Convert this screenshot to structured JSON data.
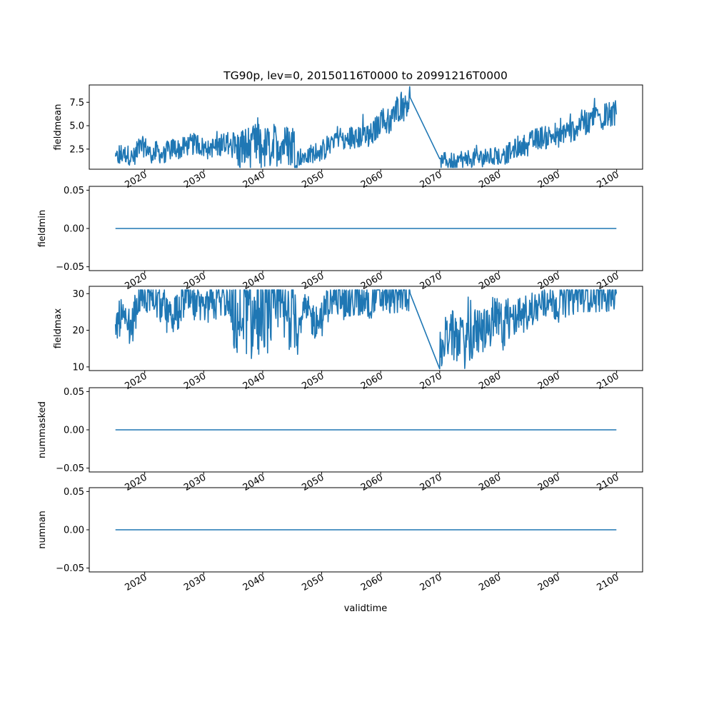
{
  "chart_data": {
    "type": "line",
    "title": "TG90p, lev=0, 20150116T0000 to 20991216T0000",
    "xlabel": "validtime",
    "color": "#1f77b4",
    "x_ticks": [
      2020,
      2030,
      2040,
      2050,
      2060,
      2070,
      2080,
      2090,
      2100
    ],
    "xlim": [
      2010.6,
      2104.4
    ],
    "panels": [
      {
        "ylabel": "fieldmean",
        "ylim": [
          0.35,
          9.35
        ],
        "y_ticks": [
          2.5,
          5.0,
          7.5
        ],
        "y_tick_labels": [
          "2.5",
          "5.0",
          "7.5"
        ],
        "series": [
          {
            "x": 2015.04,
            "y": 1.4
          },
          {
            "x": 2016.0,
            "y": 1.9
          },
          {
            "x": 2017.0,
            "y": 2.0
          },
          {
            "x": 2018.0,
            "y": 1.5
          },
          {
            "x": 2019.0,
            "y": 2.6
          },
          {
            "x": 2020.0,
            "y": 2.8
          },
          {
            "x": 2021.0,
            "y": 2.0
          },
          {
            "x": 2022.0,
            "y": 2.3
          },
          {
            "x": 2023.0,
            "y": 1.8
          },
          {
            "x": 2024.0,
            "y": 2.4
          },
          {
            "x": 2025.0,
            "y": 2.7
          },
          {
            "x": 2026.0,
            "y": 2.4
          },
          {
            "x": 2027.0,
            "y": 2.9
          },
          {
            "x": 2028.0,
            "y": 3.0
          },
          {
            "x": 2029.0,
            "y": 3.1
          },
          {
            "x": 2030.0,
            "y": 2.6
          },
          {
            "x": 2031.0,
            "y": 2.8
          },
          {
            "x": 2032.0,
            "y": 2.6
          },
          {
            "x": 2033.0,
            "y": 3.0
          },
          {
            "x": 2034.0,
            "y": 3.3
          },
          {
            "x": 2035.0,
            "y": 2.4
          },
          {
            "x": 2036.0,
            "y": 2.3
          },
          {
            "x": 2037.0,
            "y": 2.7
          },
          {
            "x": 2038.0,
            "y": 2.6
          },
          {
            "x": 2039.0,
            "y": 3.0
          },
          {
            "x": 2040.0,
            "y": 2.5
          },
          {
            "x": 2041.0,
            "y": 2.7
          },
          {
            "x": 2042.0,
            "y": 2.9
          },
          {
            "x": 2043.0,
            "y": 3.3
          },
          {
            "x": 2044.0,
            "y": 2.8
          },
          {
            "x": 2045.0,
            "y": 3.2
          },
          {
            "x": 2046.0,
            "y": 1.6
          },
          {
            "x": 2047.0,
            "y": 1.8
          },
          {
            "x": 2048.0,
            "y": 1.7
          },
          {
            "x": 2049.0,
            "y": 2.4
          },
          {
            "x": 2050.0,
            "y": 2.0
          },
          {
            "x": 2051.0,
            "y": 2.8
          },
          {
            "x": 2052.0,
            "y": 3.6
          },
          {
            "x": 2053.0,
            "y": 4.0
          },
          {
            "x": 2054.0,
            "y": 3.3
          },
          {
            "x": 2055.0,
            "y": 3.8
          },
          {
            "x": 2056.0,
            "y": 3.5
          },
          {
            "x": 2057.0,
            "y": 4.2
          },
          {
            "x": 2058.0,
            "y": 3.8
          },
          {
            "x": 2059.0,
            "y": 4.5
          },
          {
            "x": 2060.0,
            "y": 5.6
          },
          {
            "x": 2061.0,
            "y": 5.4
          },
          {
            "x": 2062.0,
            "y": 6.0
          },
          {
            "x": 2063.0,
            "y": 7.0
          },
          {
            "x": 2064.0,
            "y": 7.5
          },
          {
            "x": 2065.0,
            "y": 8.0
          },
          {
            "x": 2070.0,
            "y": 0.9
          },
          {
            "x": 2071.0,
            "y": 1.3
          },
          {
            "x": 2072.0,
            "y": 1.2
          },
          {
            "x": 2073.0,
            "y": 1.1
          },
          {
            "x": 2074.0,
            "y": 1.3
          },
          {
            "x": 2075.0,
            "y": 1.4
          },
          {
            "x": 2076.0,
            "y": 1.6
          },
          {
            "x": 2077.0,
            "y": 1.5
          },
          {
            "x": 2078.0,
            "y": 1.7
          },
          {
            "x": 2079.0,
            "y": 1.6
          },
          {
            "x": 2080.0,
            "y": 1.8
          },
          {
            "x": 2081.0,
            "y": 1.7
          },
          {
            "x": 2082.0,
            "y": 2.3
          },
          {
            "x": 2083.0,
            "y": 2.6
          },
          {
            "x": 2084.0,
            "y": 2.8
          },
          {
            "x": 2085.0,
            "y": 3.2
          },
          {
            "x": 2086.0,
            "y": 3.4
          },
          {
            "x": 2087.0,
            "y": 3.8
          },
          {
            "x": 2088.0,
            "y": 3.7
          },
          {
            "x": 2089.0,
            "y": 4.0
          },
          {
            "x": 2090.0,
            "y": 3.6
          },
          {
            "x": 2091.0,
            "y": 4.4
          },
          {
            "x": 2092.0,
            "y": 4.5
          },
          {
            "x": 2093.0,
            "y": 4.8
          },
          {
            "x": 2094.0,
            "y": 5.3
          },
          {
            "x": 2095.0,
            "y": 5.4
          },
          {
            "x": 2096.0,
            "y": 6.3
          },
          {
            "x": 2097.0,
            "y": 5.8
          },
          {
            "x": 2098.0,
            "y": 6.3
          },
          {
            "x": 2099.0,
            "y": 5.9
          },
          {
            "x": 2099.96,
            "y": 6.2
          }
        ]
      },
      {
        "ylabel": "fieldmin",
        "ylim": [
          -0.055,
          0.055
        ],
        "y_ticks": [
          -0.05,
          0.0,
          0.05
        ],
        "y_tick_labels": [
          "−0.05",
          "0.00",
          "0.05"
        ],
        "series": [
          {
            "x": 2015.04,
            "y": 0
          },
          {
            "x": 2099.96,
            "y": 0
          }
        ]
      },
      {
        "ylabel": "fieldmax",
        "ylim": [
          9.0,
          32.0
        ],
        "y_ticks": [
          10,
          20,
          30
        ],
        "y_tick_labels": [
          "10",
          "20",
          "30"
        ],
        "series": [
          {
            "x": 2015.04,
            "y": 21
          },
          {
            "x": 2016.0,
            "y": 24
          },
          {
            "x": 2017.0,
            "y": 20
          },
          {
            "x": 2018.0,
            "y": 22
          },
          {
            "x": 2019.0,
            "y": 29
          },
          {
            "x": 2020.0,
            "y": 30
          },
          {
            "x": 2021.0,
            "y": 29
          },
          {
            "x": 2022.0,
            "y": 28
          },
          {
            "x": 2023.0,
            "y": 26
          },
          {
            "x": 2024.0,
            "y": 23
          },
          {
            "x": 2025.0,
            "y": 24
          },
          {
            "x": 2026.0,
            "y": 26
          },
          {
            "x": 2027.0,
            "y": 29
          },
          {
            "x": 2028.0,
            "y": 27
          },
          {
            "x": 2029.0,
            "y": 26
          },
          {
            "x": 2030.0,
            "y": 24
          },
          {
            "x": 2031.0,
            "y": 27
          },
          {
            "x": 2032.0,
            "y": 27
          },
          {
            "x": 2033.0,
            "y": 29
          },
          {
            "x": 2034.0,
            "y": 28
          },
          {
            "x": 2035.0,
            "y": 24
          },
          {
            "x": 2036.0,
            "y": 23
          },
          {
            "x": 2037.0,
            "y": 25
          },
          {
            "x": 2038.0,
            "y": 22
          },
          {
            "x": 2039.0,
            "y": 24
          },
          {
            "x": 2040.0,
            "y": 23
          },
          {
            "x": 2041.0,
            "y": 25
          },
          {
            "x": 2042.0,
            "y": 24
          },
          {
            "x": 2043.0,
            "y": 25
          },
          {
            "x": 2044.0,
            "y": 23
          },
          {
            "x": 2045.0,
            "y": 27
          },
          {
            "x": 2046.0,
            "y": 22
          },
          {
            "x": 2047.0,
            "y": 25
          },
          {
            "x": 2048.0,
            "y": 24
          },
          {
            "x": 2049.0,
            "y": 22
          },
          {
            "x": 2050.0,
            "y": 23
          },
          {
            "x": 2051.0,
            "y": 27
          },
          {
            "x": 2052.0,
            "y": 29
          },
          {
            "x": 2053.0,
            "y": 30
          },
          {
            "x": 2054.0,
            "y": 28
          },
          {
            "x": 2055.0,
            "y": 27
          },
          {
            "x": 2056.0,
            "y": 29
          },
          {
            "x": 2057.0,
            "y": 28
          },
          {
            "x": 2058.0,
            "y": 27
          },
          {
            "x": 2059.0,
            "y": 30
          },
          {
            "x": 2060.0,
            "y": 29
          },
          {
            "x": 2061.0,
            "y": 30
          },
          {
            "x": 2062.0,
            "y": 29
          },
          {
            "x": 2063.0,
            "y": 30
          },
          {
            "x": 2064.0,
            "y": 30
          },
          {
            "x": 2065.0,
            "y": 30
          },
          {
            "x": 2070.0,
            "y": 15
          },
          {
            "x": 2071.0,
            "y": 18
          },
          {
            "x": 2072.0,
            "y": 19
          },
          {
            "x": 2073.0,
            "y": 17
          },
          {
            "x": 2074.0,
            "y": 16
          },
          {
            "x": 2075.0,
            "y": 18
          },
          {
            "x": 2076.0,
            "y": 19
          },
          {
            "x": 2077.0,
            "y": 20
          },
          {
            "x": 2078.0,
            "y": 21
          },
          {
            "x": 2079.0,
            "y": 22
          },
          {
            "x": 2080.0,
            "y": 22
          },
          {
            "x": 2081.0,
            "y": 21
          },
          {
            "x": 2082.0,
            "y": 23
          },
          {
            "x": 2083.0,
            "y": 24
          },
          {
            "x": 2084.0,
            "y": 24
          },
          {
            "x": 2085.0,
            "y": 25
          },
          {
            "x": 2086.0,
            "y": 26
          },
          {
            "x": 2087.0,
            "y": 27
          },
          {
            "x": 2088.0,
            "y": 27
          },
          {
            "x": 2089.0,
            "y": 28
          },
          {
            "x": 2090.0,
            "y": 27
          },
          {
            "x": 2091.0,
            "y": 28
          },
          {
            "x": 2092.0,
            "y": 29
          },
          {
            "x": 2093.0,
            "y": 29
          },
          {
            "x": 2094.0,
            "y": 30
          },
          {
            "x": 2095.0,
            "y": 30
          },
          {
            "x": 2096.0,
            "y": 30
          },
          {
            "x": 2097.0,
            "y": 30
          },
          {
            "x": 2098.0,
            "y": 30
          },
          {
            "x": 2099.0,
            "y": 30
          },
          {
            "x": 2099.96,
            "y": 30
          }
        ]
      },
      {
        "ylabel": "nummasked",
        "ylim": [
          -0.055,
          0.055
        ],
        "y_ticks": [
          -0.05,
          0.0,
          0.05
        ],
        "y_tick_labels": [
          "−0.05",
          "0.00",
          "0.05"
        ],
        "series": [
          {
            "x": 2015.04,
            "y": 0
          },
          {
            "x": 2099.96,
            "y": 0
          }
        ]
      },
      {
        "ylabel": "numnan",
        "ylim": [
          -0.055,
          0.055
        ],
        "y_ticks": [
          -0.05,
          0.0,
          0.05
        ],
        "y_tick_labels": [
          "−0.05",
          "0.00",
          "0.05"
        ],
        "series": [
          {
            "x": 2015.04,
            "y": 0
          },
          {
            "x": 2099.96,
            "y": 0
          }
        ]
      }
    ]
  }
}
